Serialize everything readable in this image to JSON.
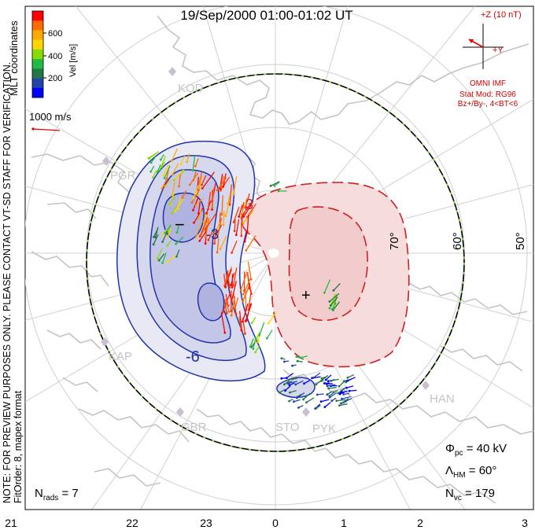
{
  "header": {
    "title": "19/Sep/2000 01:00-01:02 UT"
  },
  "velocity_scale": {
    "label": "Vel [m/s]",
    "ticks": [
      "600",
      "400",
      "200"
    ],
    "colors": [
      "#ff0000",
      "#ff6a00",
      "#ffaa00",
      "#ffd400",
      "#88dd00",
      "#22bb44",
      "#227744",
      "#2244aa",
      "#0000ff"
    ]
  },
  "coord_label": "MLT coordinates",
  "reference_vector": {
    "label": "1000 m/s",
    "color": "#dd0000"
  },
  "imf": {
    "z_label": "+Z (10 nT)",
    "y_label": "+Y",
    "source": "OMNI IMF",
    "model": "Stat Mod: RG96",
    "condition": "Bz+/By-, 4<BT<6",
    "color": "#dd0000"
  },
  "note": "NOTE: FOR PREVIEW PURPOSES ONLY. PLEASE CONTACT VT-SD STAFF FOR VERIFICATION.",
  "fit_order": "FitOrder: 8, mapex format",
  "stats": {
    "phi_pc": "Φpc = 40 kV",
    "phi_pc_main": "Φ",
    "phi_pc_sub": "pc",
    "phi_pc_value": " = 40 kV",
    "lambda_hm_main": "Λ",
    "lambda_hm_sub": "HM",
    "lambda_hm_value": " = 60°",
    "n_vc_main": "N",
    "n_vc_sub": "vc",
    "n_vc_value": " = 179",
    "n_rads_main": "N",
    "n_rads_sub": "rads",
    "n_rads_value": " = 7"
  },
  "latitude_labels": [
    "70°",
    "60°",
    "50°"
  ],
  "mlt_ticks": [
    "21",
    "22",
    "23",
    "0",
    "1",
    "2",
    "3"
  ],
  "stations": [
    "KOD",
    "PGR",
    "KAP",
    "GBR",
    "STO",
    "PYK",
    "HAN"
  ],
  "contour_labels": {
    "neg_6": "-6",
    "neg_3": "-3",
    "pos_3": "3",
    "min_marker": "−",
    "max_marker": "+"
  },
  "colors": {
    "negative_cell": "#2233aa",
    "positive_cell": "#cc2222",
    "boundary": "#000000",
    "boundary_dash": "#88dd44",
    "grid": "#d0d0d0",
    "coast": "#c8c8c8"
  }
}
